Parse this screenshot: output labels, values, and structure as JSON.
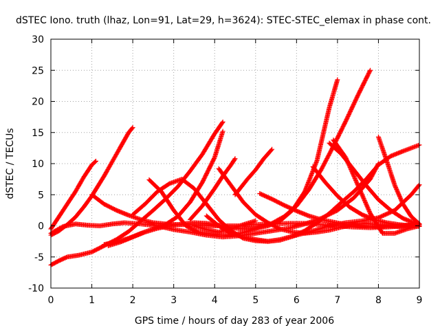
{
  "chart_data": {
    "type": "scatter",
    "title": "dSTEC Iono. truth (lhaz, Lon=91, Lat=29, h=3624): STEC-STEC_elemax in phase cont.",
    "xlabel": "GPS time / hours of day 283 of year 2006",
    "ylabel": "dSTEC  / TECUs",
    "xlim": [
      0,
      9
    ],
    "ylim": [
      -10,
      30
    ],
    "xticks": [
      0,
      1,
      2,
      3,
      4,
      5,
      6,
      7,
      8,
      9
    ],
    "yticks": [
      -10,
      -5,
      0,
      5,
      10,
      15,
      20,
      25,
      30
    ],
    "grid": true,
    "legend": "none",
    "marker": "plus",
    "color": "#ff0000",
    "series": [
      {
        "x": [
          0.0,
          0.2,
          0.4,
          0.6,
          0.8,
          1.0,
          1.1
        ],
        "y": [
          -0.5,
          1.5,
          3.5,
          5.5,
          7.8,
          9.8,
          10.4
        ]
      },
      {
        "x": [
          0.0,
          0.2,
          0.4,
          0.6,
          0.8,
          1.0,
          1.3,
          1.6,
          1.9,
          2.0
        ],
        "y": [
          -1.5,
          -0.8,
          0.2,
          1.4,
          3.0,
          4.8,
          8.0,
          11.5,
          15.0,
          15.8
        ]
      },
      {
        "x": [
          0.0,
          0.3,
          0.6,
          0.9,
          1.2,
          1.5,
          1.8,
          2.2,
          2.6,
          3.0,
          3.4,
          3.8,
          4.2,
          4.6,
          5.0,
          5.4,
          5.8,
          6.2,
          6.6,
          7.0,
          7.4,
          7.8,
          8.0
        ],
        "y": [
          -1.2,
          -0.1,
          0.3,
          0.1,
          0.0,
          0.3,
          0.5,
          0.3,
          0.0,
          -0.6,
          -1.0,
          -1.5,
          -1.8,
          -1.6,
          -1.2,
          -0.8,
          -0.4,
          0.3,
          1.2,
          2.5,
          4.5,
          7.5,
          10.0
        ]
      },
      {
        "x": [
          0.0,
          0.2,
          0.4,
          0.7,
          1.0,
          1.3,
          1.6,
          1.9,
          2.2,
          2.5,
          2.8,
          3.1,
          3.4,
          3.7,
          4.0,
          4.2
        ],
        "y": [
          -6.3,
          -5.6,
          -5.0,
          -4.7,
          -4.2,
          -3.2,
          -2.2,
          -0.9,
          0.8,
          2.5,
          4.3,
          6.3,
          8.8,
          11.5,
          14.8,
          16.7
        ]
      },
      {
        "x": [
          1.3,
          1.6,
          1.9,
          2.2,
          2.5,
          2.8,
          3.1,
          3.4,
          3.7,
          4.0,
          4.2
        ],
        "y": [
          -3.0,
          -2.6,
          -2.0,
          -1.2,
          -0.5,
          0.2,
          1.5,
          3.8,
          7.0,
          11.0,
          15.2
        ]
      },
      {
        "x": [
          1.0,
          1.3,
          1.6,
          1.9,
          2.2,
          2.5,
          2.8,
          3.1,
          3.4,
          3.7,
          4.0,
          4.3,
          4.6,
          5.0,
          5.4,
          5.8,
          6.2,
          6.6,
          7.0,
          7.4,
          7.8,
          8.2,
          8.6,
          9.0
        ],
        "y": [
          5.0,
          3.5,
          2.5,
          1.7,
          1.0,
          0.5,
          0.3,
          0.2,
          0.2,
          0.1,
          0.0,
          0.0,
          0.0,
          0.2,
          0.3,
          0.4,
          0.4,
          0.2,
          0.0,
          -0.2,
          -0.3,
          -0.2,
          0.0,
          0.2
        ]
      },
      {
        "x": [
          1.4,
          1.7,
          2.0,
          2.3,
          2.6,
          2.9,
          3.2,
          3.5,
          3.8,
          4.1,
          4.4,
          4.7,
          5.0,
          5.3,
          5.6,
          5.9,
          6.2,
          6.5,
          6.8,
          7.0
        ],
        "y": [
          -3.2,
          -2.6,
          -1.8,
          -1.0,
          -0.4,
          0.0,
          0.3,
          0.5,
          0.4,
          0.1,
          -0.3,
          -0.5,
          -0.4,
          0.0,
          0.8,
          2.5,
          5.5,
          10.5,
          19.0,
          23.5
        ]
      },
      {
        "x": [
          2.4,
          2.7,
          3.0,
          3.3,
          3.6,
          3.9,
          4.2,
          4.5,
          4.8,
          5.1,
          5.4,
          5.7,
          6.0,
          6.3,
          6.6,
          6.9,
          7.2,
          7.5,
          7.8
        ],
        "y": [
          7.4,
          5.5,
          2.5,
          0.0,
          -1.0,
          -1.3,
          -1.5,
          -1.4,
          -0.9,
          -0.2,
          0.4,
          1.5,
          3.2,
          5.8,
          9.0,
          12.8,
          16.8,
          21.0,
          25.0
        ]
      },
      {
        "x": [
          2.0,
          2.3,
          2.6,
          2.9,
          3.2,
          3.5,
          3.8,
          4.1,
          4.4,
          4.7,
          5.0,
          5.3,
          5.6,
          6.0,
          6.4,
          6.8,
          7.2,
          7.6,
          8.0,
          8.4,
          8.8,
          9.0
        ],
        "y": [
          1.8,
          3.5,
          5.5,
          6.8,
          7.5,
          6.0,
          3.5,
          1.0,
          -0.8,
          -2.0,
          -2.4,
          -2.5,
          -2.2,
          -1.5,
          -0.8,
          0.0,
          0.5,
          0.8,
          1.3,
          2.5,
          5.0,
          6.6
        ]
      },
      {
        "x": [
          3.8,
          4.1,
          4.4,
          4.7,
          5.0,
          5.3,
          5.6,
          5.9,
          6.2,
          6.5,
          6.8,
          7.1,
          7.4,
          7.7,
          8.0,
          8.3,
          8.6,
          9.0
        ],
        "y": [
          1.6,
          0.0,
          -1.2,
          -1.8,
          -2.2,
          -2.5,
          -2.3,
          -1.7,
          -0.8,
          0.5,
          2.0,
          3.8,
          5.5,
          7.5,
          9.8,
          11.2,
          12.0,
          13.0
        ]
      },
      {
        "x": [
          3.4,
          3.7,
          4.0,
          4.2,
          4.4,
          4.5
        ],
        "y": [
          1.0,
          3.2,
          6.0,
          8.0,
          9.8,
          10.8
        ]
      },
      {
        "x": [
          4.1,
          4.4,
          4.7,
          5.0,
          5.3,
          5.6,
          5.9,
          6.2,
          6.5,
          6.8,
          7.1,
          7.4,
          7.7,
          8.0,
          8.3,
          8.6,
          8.9,
          9.0
        ],
        "y": [
          9.2,
          6.5,
          3.8,
          1.8,
          0.5,
          -0.5,
          -1.0,
          -1.2,
          -1.0,
          -0.7,
          -0.2,
          0.2,
          0.4,
          0.2,
          0.0,
          -0.2,
          0.0,
          0.3
        ]
      },
      {
        "x": [
          4.5,
          4.8,
          5.0,
          5.2,
          5.4
        ],
        "y": [
          5.0,
          7.5,
          9.0,
          10.8,
          12.3
        ]
      },
      {
        "x": [
          3.5,
          3.8,
          4.1,
          4.4,
          4.7,
          5.0
        ],
        "y": [
          0.0,
          -0.6,
          -1.0,
          -0.5,
          0.2,
          0.8
        ]
      },
      {
        "x": [
          5.1,
          5.4,
          5.7,
          6.0,
          6.3,
          6.6,
          6.9,
          7.2,
          7.5,
          7.8,
          8.1,
          8.4,
          8.7,
          9.0
        ],
        "y": [
          5.2,
          4.3,
          3.3,
          2.4,
          1.6,
          1.0,
          0.6,
          0.2,
          0.0,
          -0.1,
          -0.1,
          0.0,
          0.1,
          0.2
        ]
      },
      {
        "x": [
          6.4,
          6.7,
          7.0,
          7.3,
          7.6,
          7.9,
          8.2,
          8.5,
          8.8,
          9.0
        ],
        "y": [
          9.5,
          7.0,
          4.8,
          3.0,
          1.8,
          1.0,
          0.5,
          0.2,
          0.0,
          -0.1
        ]
      },
      {
        "x": [
          6.8,
          7.1,
          7.4,
          7.7,
          8.0,
          8.3,
          8.6,
          8.9,
          9.0
        ],
        "y": [
          13.3,
          11.5,
          9.0,
          6.5,
          4.2,
          2.5,
          1.2,
          0.4,
          0.3
        ]
      },
      {
        "x": [
          6.9,
          7.2,
          7.5,
          7.8,
          8.1,
          8.4,
          8.7,
          9.0
        ],
        "y": [
          13.8,
          11.0,
          6.5,
          2.0,
          -1.2,
          -1.2,
          -0.5,
          0.0
        ]
      },
      {
        "x": [
          8.0,
          8.2,
          8.4,
          8.6,
          8.8,
          9.0
        ],
        "y": [
          14.3,
          10.5,
          6.5,
          3.5,
          1.5,
          0.3
        ]
      }
    ]
  }
}
